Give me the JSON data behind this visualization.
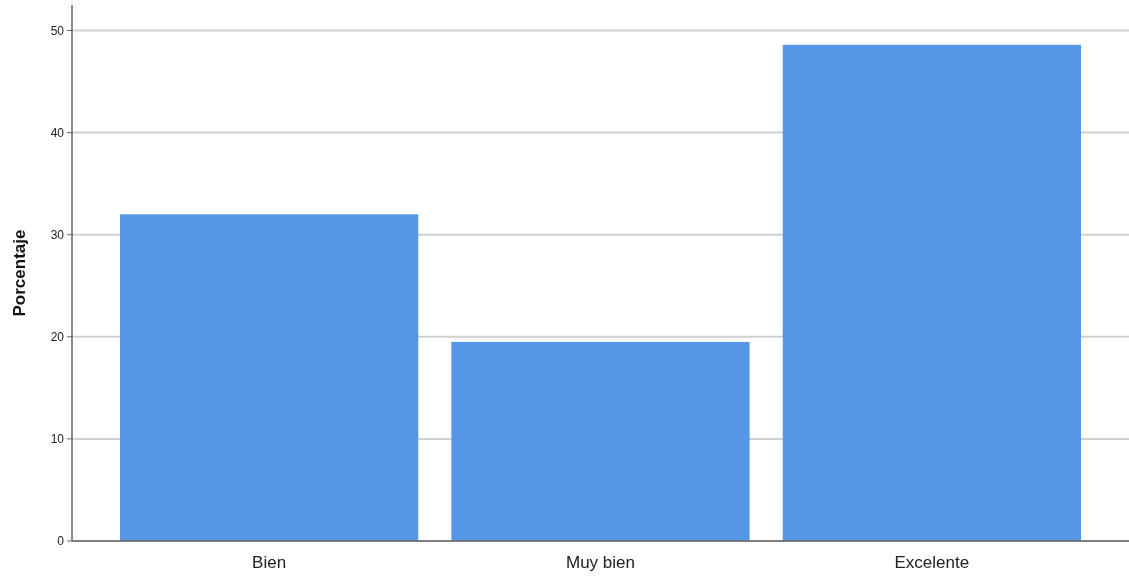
{
  "chart_data": {
    "type": "bar",
    "ylabel": "Porcentaje",
    "categories": [
      "Bien",
      "Muy bien",
      "Excelente"
    ],
    "values": [
      32,
      19.5,
      48.6
    ],
    "color": "#5596e6",
    "ylim": [
      0,
      52.5
    ],
    "yticks": [
      0,
      10,
      20,
      30,
      40,
      50
    ],
    "grid": "y"
  }
}
